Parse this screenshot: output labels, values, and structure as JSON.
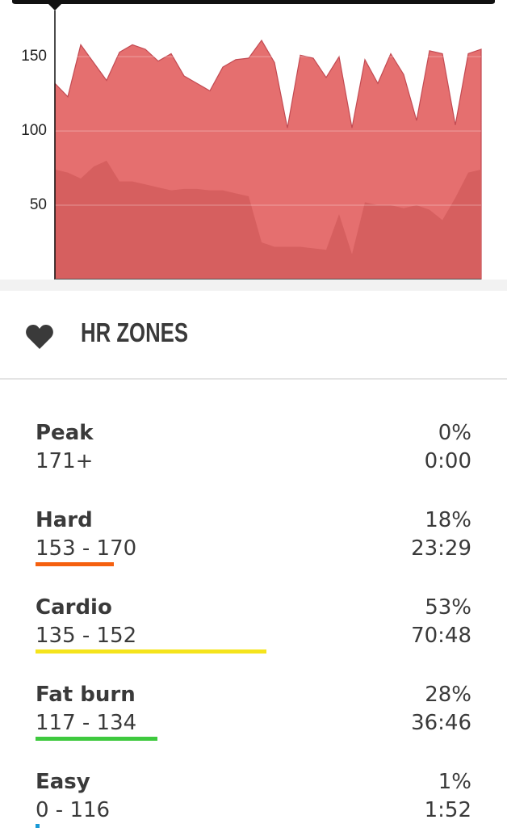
{
  "chart_data": {
    "type": "area",
    "ylim": [
      0,
      180
    ],
    "yticks": [
      50,
      100,
      150
    ],
    "grid": true,
    "series": [
      {
        "color": "#e56f6f",
        "line_color": "#c24a52",
        "values": [
          132,
          123,
          158,
          146,
          134,
          153,
          158,
          155,
          147,
          152,
          137,
          132,
          127,
          143,
          148,
          149,
          161,
          146,
          102,
          151,
          149,
          136,
          150,
          102,
          148,
          132,
          152,
          138,
          107,
          154,
          152,
          104,
          152,
          155
        ]
      },
      {
        "color": "#d65f5f",
        "values": [
          74,
          72,
          68,
          76,
          80,
          66,
          66,
          64,
          62,
          60,
          61,
          61,
          60,
          60,
          58,
          56,
          25,
          22,
          22,
          22,
          21,
          20,
          44,
          17,
          52,
          50,
          50,
          48,
          50,
          47,
          40,
          55,
          72,
          74
        ]
      }
    ]
  },
  "section": {
    "title": "HR ZONES"
  },
  "zones": [
    {
      "name": "Peak",
      "range": "171+",
      "percent": {
        "value": 0,
        "label": "0%"
      },
      "time": "0:00"
    },
    {
      "name": "Hard",
      "range": "153 - 170",
      "percent": {
        "value": 18,
        "label": "18%"
      },
      "time": "23:29",
      "color": "#f5600f"
    },
    {
      "name": "Cardio",
      "range": "135 - 152",
      "percent": {
        "value": 53,
        "label": "53%"
      },
      "time": "70:48",
      "color": "#f5e41c"
    },
    {
      "name": "Fat burn",
      "range": "117 - 134",
      "percent": {
        "value": 28,
        "label": "28%"
      },
      "time": "36:46",
      "color": "#3ec93e"
    },
    {
      "name": "Easy",
      "range": "0 - 116",
      "percent": {
        "value": 1,
        "label": "1%"
      },
      "time": "1:52",
      "color": "#1a9ad6"
    }
  ]
}
